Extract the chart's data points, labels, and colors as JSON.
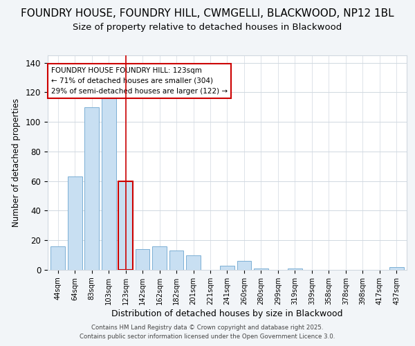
{
  "title1": "FOUNDRY HOUSE, FOUNDRY HILL, CWMGELLI, BLACKWOOD, NP12 1BL",
  "title2": "Size of property relative to detached houses in Blackwood",
  "xlabel": "Distribution of detached houses by size in Blackwood",
  "ylabel": "Number of detached properties",
  "categories": [
    "44sqm",
    "64sqm",
    "83sqm",
    "103sqm",
    "123sqm",
    "142sqm",
    "162sqm",
    "182sqm",
    "201sqm",
    "221sqm",
    "241sqm",
    "260sqm",
    "280sqm",
    "299sqm",
    "319sqm",
    "339sqm",
    "358sqm",
    "378sqm",
    "398sqm",
    "417sqm",
    "437sqm"
  ],
  "values": [
    16,
    63,
    110,
    116,
    60,
    14,
    16,
    13,
    10,
    0,
    3,
    6,
    1,
    0,
    1,
    0,
    0,
    0,
    0,
    0,
    2
  ],
  "bar_color": "#c8dff2",
  "bar_edge_color": "#7bafd4",
  "highlight_index": 4,
  "highlight_color": "#c8dff2",
  "highlight_edge_color": "#cc0000",
  "vline_x": 4,
  "annotation_title": "FOUNDRY HOUSE FOUNDRY HILL: 123sqm",
  "annotation_line1": "← 71% of detached houses are smaller (304)",
  "annotation_line2": "29% of semi-detached houses are larger (122) →",
  "annotation_box_color": "#ffffff",
  "annotation_box_edge": "#cc0000",
  "ylim": [
    0,
    145
  ],
  "yticks": [
    0,
    20,
    40,
    60,
    80,
    100,
    120,
    140
  ],
  "footer1": "Contains HM Land Registry data © Crown copyright and database right 2025.",
  "footer2": "Contains public sector information licensed under the Open Government Licence 3.0.",
  "background_color": "#f2f5f8",
  "plot_background": "#ffffff",
  "grid_color": "#d0d8e0",
  "title_fontsize": 11,
  "subtitle_fontsize": 9.5
}
